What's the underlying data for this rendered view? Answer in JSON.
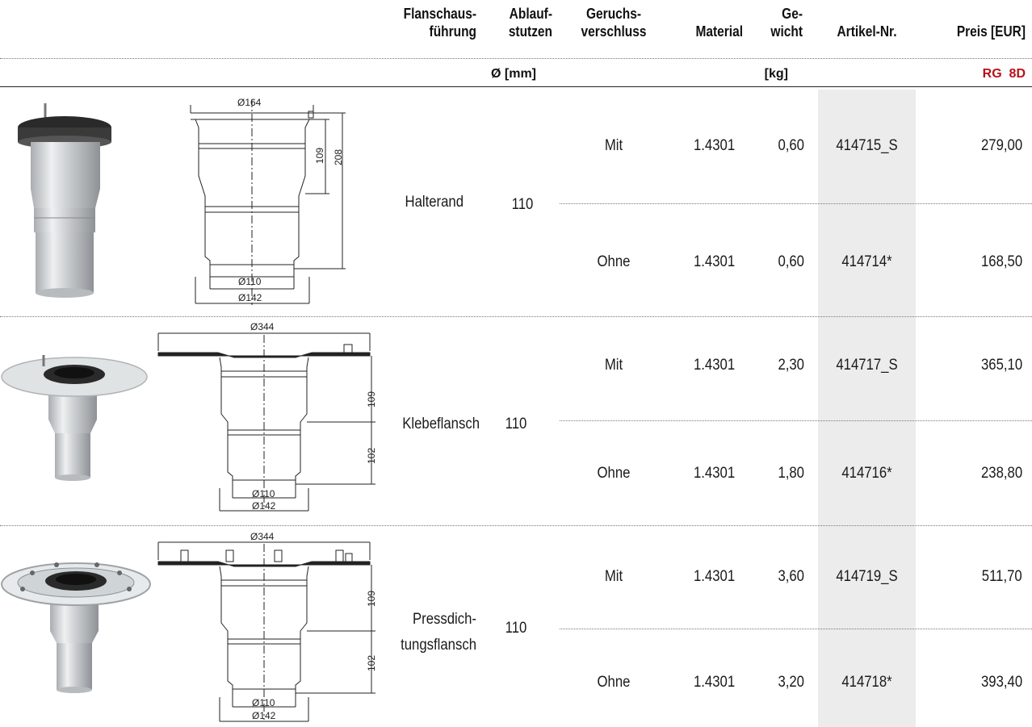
{
  "header": {
    "flanschausfuehrung": [
      "Flanschaus-",
      "führung"
    ],
    "ablaufstutzen": [
      "Ablauf-",
      "stutzen"
    ],
    "geruchsverschluss": [
      "Geruchs-",
      "verschluss"
    ],
    "material": "Material",
    "gewicht": [
      "Ge-",
      "wicht"
    ],
    "artikel": "Artikel-Nr.",
    "preis": "Preis [EUR]",
    "unit_ablauf": "Ø [mm]",
    "unit_gewicht": "[kg]",
    "price_group": "RG  8D"
  },
  "groups": [
    {
      "flange": "Halterand",
      "flange_lines": [
        "Halterand"
      ],
      "outlet": "110",
      "drawing": {
        "top": "Ø164",
        "d1": "109",
        "d2": "208",
        "b1": "Ø110",
        "b2": "Ø142"
      },
      "rows": [
        {
          "trap": "Mit",
          "material": "1.4301",
          "weight": "0,60",
          "article": "414715_S",
          "price": "279,00"
        },
        {
          "trap": "Ohne",
          "material": "1.4301",
          "weight": "0,60",
          "article": "414714*",
          "price": "168,50"
        }
      ]
    },
    {
      "flange": "Klebeflansch",
      "flange_lines": [
        "Klebeflansch"
      ],
      "outlet": "110",
      "drawing": {
        "top": "Ø344",
        "d1": "109",
        "d2": "102",
        "b1": "Ø110",
        "b2": "Ø142"
      },
      "rows": [
        {
          "trap": "Mit",
          "material": "1.4301",
          "weight": "2,30",
          "article": "414717_S",
          "price": "365,10"
        },
        {
          "trap": "Ohne",
          "material": "1.4301",
          "weight": "1,80",
          "article": "414716*",
          "price": "238,80"
        }
      ]
    },
    {
      "flange": "Pressdichtungsflansch",
      "flange_lines": [
        "Pressdich-",
        "tungsflansch"
      ],
      "outlet": "110",
      "drawing": {
        "top": "Ø344",
        "d1": "109",
        "d2": "102",
        "b1": "Ø110",
        "b2": "Ø142"
      },
      "rows": [
        {
          "trap": "Mit",
          "material": "1.4301",
          "weight": "3,60",
          "article": "414719_S",
          "price": "511,70"
        },
        {
          "trap": "Ohne",
          "material": "1.4301",
          "weight": "3,20",
          "article": "414718*",
          "price": "393,40"
        }
      ]
    }
  ],
  "colors": {
    "accent_red": "#b5121b",
    "shade": "#ececec"
  }
}
